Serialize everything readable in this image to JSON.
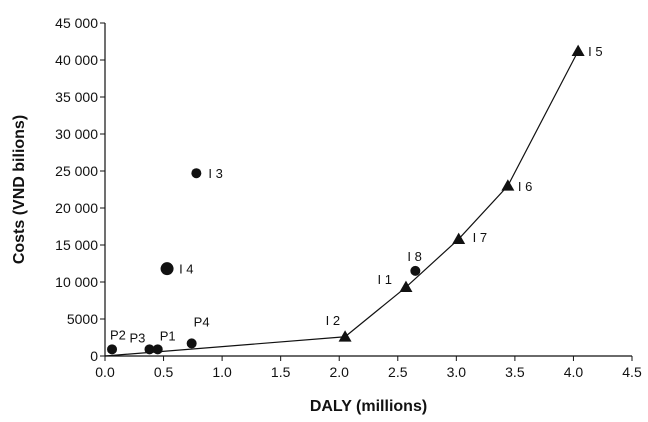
{
  "chart_data": {
    "type": "scatter",
    "title": "",
    "xlabel": "DALY (millions)",
    "ylabel": "Costs (VND bilions)",
    "xlim": [
      0.0,
      4.5
    ],
    "ylim": [
      0,
      45000
    ],
    "x_ticks": [
      "0.0",
      "0.5",
      "1.0",
      "1.5",
      "2.0",
      "2.5",
      "3.0",
      "3.5",
      "4.0",
      "4.5"
    ],
    "y_ticks": [
      "0",
      "5000",
      "10 000",
      "15 000",
      "20 000",
      "25 000",
      "30 000",
      "35 000",
      "40 000",
      "45 000"
    ],
    "grid": false,
    "series": [
      {
        "marker": "triangle",
        "connected": true,
        "points": [
          {
            "label": "",
            "x": 0.0,
            "y": 0
          },
          {
            "label": "I 2",
            "x": 2.05,
            "y": 2600
          },
          {
            "label": "I 1",
            "x": 2.57,
            "y": 9300
          },
          {
            "label": "I 7",
            "x": 3.02,
            "y": 15800
          },
          {
            "label": "I 6",
            "x": 3.44,
            "y": 23000
          },
          {
            "label": "I 5",
            "x": 4.04,
            "y": 41200
          }
        ]
      },
      {
        "marker": "circle",
        "connected": false,
        "points": [
          {
            "label": "P2",
            "x": 0.06,
            "y": 900
          },
          {
            "label": "P3",
            "x": 0.38,
            "y": 900
          },
          {
            "label": "P1",
            "x": 0.45,
            "y": 900
          },
          {
            "label": "P4",
            "x": 0.74,
            "y": 1700
          },
          {
            "label": "I 3",
            "x": 0.78,
            "y": 24700
          },
          {
            "label": "I 4",
            "x": 0.53,
            "y": 11800
          },
          {
            "label": "I 8",
            "x": 2.65,
            "y": 11500
          }
        ]
      }
    ]
  }
}
